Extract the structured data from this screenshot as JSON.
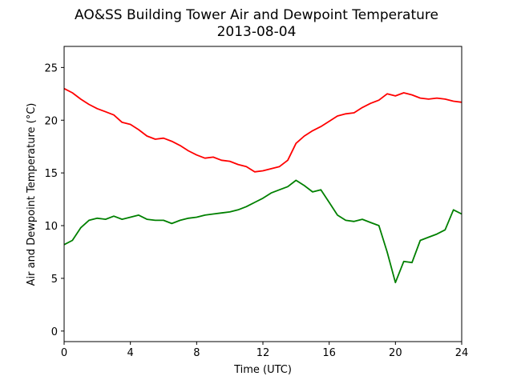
{
  "chart_data": {
    "type": "line",
    "title": "AO&SS Building Tower Air and Dewpoint Temperature",
    "subtitle": "2013-08-04",
    "xlabel": "Time (UTC)",
    "ylabel": "Air and Dewpoint Temperature (°C)",
    "xlim": [
      0,
      24
    ],
    "ylim": [
      -1,
      27
    ],
    "xticks": [
      0,
      4,
      8,
      12,
      16,
      20,
      24
    ],
    "yticks": [
      0,
      5,
      10,
      15,
      20,
      25
    ],
    "grid": false,
    "legend": "none",
    "series": [
      {
        "color": "#ff0000",
        "x": [
          0,
          0.5,
          1,
          1.5,
          2,
          2.5,
          3,
          3.5,
          4,
          4.5,
          5,
          5.5,
          6,
          6.5,
          7,
          7.5,
          8,
          8.5,
          9,
          9.5,
          10,
          10.5,
          11,
          11.5,
          12,
          12.5,
          13,
          13.5,
          14,
          14.5,
          15,
          15.5,
          16,
          16.5,
          17,
          17.5,
          18,
          18.5,
          19,
          19.5,
          20,
          20.5,
          21,
          21.5,
          22,
          22.5,
          23,
          23.5,
          24
        ],
        "y": [
          23.0,
          22.6,
          22.0,
          21.5,
          21.1,
          20.8,
          20.5,
          19.8,
          19.6,
          19.1,
          18.5,
          18.2,
          18.3,
          18.0,
          17.6,
          17.1,
          16.7,
          16.4,
          16.5,
          16.2,
          16.1,
          15.8,
          15.6,
          15.1,
          15.2,
          15.4,
          15.6,
          16.2,
          17.8,
          18.5,
          19.0,
          19.4,
          19.9,
          20.4,
          20.6,
          20.7,
          21.2,
          21.6,
          21.9,
          22.5,
          22.3,
          22.6,
          22.4,
          22.1,
          22.0,
          22.1,
          22.0,
          21.8,
          21.7
        ]
      },
      {
        "color": "#008000",
        "x": [
          0,
          0.5,
          1,
          1.5,
          2,
          2.5,
          3,
          3.5,
          4,
          4.5,
          5,
          5.5,
          6,
          6.5,
          7,
          7.5,
          8,
          8.5,
          9,
          9.5,
          10,
          10.5,
          11,
          11.5,
          12,
          12.5,
          13,
          13.5,
          14,
          14.5,
          15,
          15.5,
          16,
          16.5,
          17,
          17.5,
          18,
          18.5,
          19,
          19.5,
          20,
          20.5,
          21,
          21.5,
          22,
          22.5,
          23,
          23.5,
          24
        ],
        "y": [
          8.2,
          8.6,
          9.8,
          10.5,
          10.7,
          10.6,
          10.9,
          10.6,
          10.8,
          11.0,
          10.6,
          10.5,
          10.5,
          10.2,
          10.5,
          10.7,
          10.8,
          11.0,
          11.1,
          11.2,
          11.3,
          11.5,
          11.8,
          12.2,
          12.6,
          13.1,
          13.4,
          13.7,
          14.3,
          13.8,
          13.2,
          13.4,
          12.2,
          11.0,
          10.5,
          10.4,
          10.6,
          10.3,
          10.0,
          7.5,
          4.6,
          6.6,
          6.5,
          8.6,
          8.9,
          9.2,
          9.6,
          11.5,
          11.1
        ]
      }
    ]
  }
}
